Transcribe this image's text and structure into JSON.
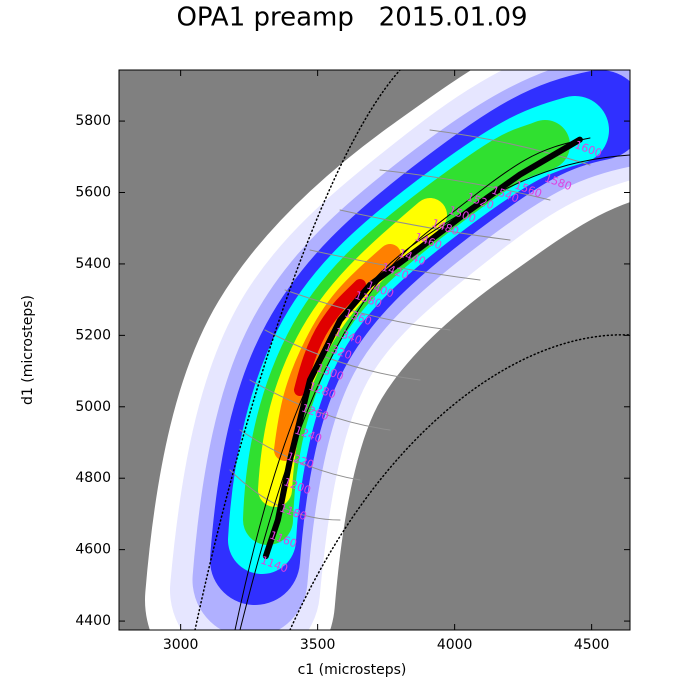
{
  "chart_data": {
    "type": "contour",
    "title": "OPA1 preamp   2015.01.09",
    "xlabel": "c1 (microsteps)",
    "ylabel": "d1 (microsteps)",
    "xlim": [
      2775,
      4640
    ],
    "xticks": [
      3000,
      3500,
      4000,
      4500
    ],
    "ylim": [
      4375,
      5943
    ],
    "yticks": [
      4400,
      4600,
      4800,
      5000,
      5200,
      5400,
      5600,
      5800
    ],
    "tune_curve": {
      "color": "#000000",
      "x": [
        3311,
        3355,
        3399,
        3472,
        3582,
        3691,
        3874,
        4056,
        4238,
        4457
      ],
      "y": [
        4582,
        4683,
        4851,
        5075,
        5243,
        5341,
        5445,
        5551,
        5650,
        5748
      ]
    },
    "contour_label_color": "#e040e0",
    "contour_labels": [
      {
        "value": 1140,
        "x": 3341,
        "y": 4557
      },
      {
        "value": 1160,
        "x": 3374,
        "y": 4627
      },
      {
        "value": 1180,
        "x": 3410,
        "y": 4703
      },
      {
        "value": 1200,
        "x": 3425,
        "y": 4776
      },
      {
        "value": 1220,
        "x": 3436,
        "y": 4848
      },
      {
        "value": 1240,
        "x": 3465,
        "y": 4921
      },
      {
        "value": 1260,
        "x": 3490,
        "y": 4983
      },
      {
        "value": 1280,
        "x": 3516,
        "y": 5044
      },
      {
        "value": 1300,
        "x": 3545,
        "y": 5095
      },
      {
        "value": 1320,
        "x": 3574,
        "y": 5154
      },
      {
        "value": 1340,
        "x": 3611,
        "y": 5196
      },
      {
        "value": 1360,
        "x": 3647,
        "y": 5249
      },
      {
        "value": 1380,
        "x": 3684,
        "y": 5299
      },
      {
        "value": 1400,
        "x": 3728,
        "y": 5327
      },
      {
        "value": 1420,
        "x": 3782,
        "y": 5378
      },
      {
        "value": 1440,
        "x": 3844,
        "y": 5417
      },
      {
        "value": 1460,
        "x": 3903,
        "y": 5462
      },
      {
        "value": 1480,
        "x": 3965,
        "y": 5501
      },
      {
        "value": 1500,
        "x": 4027,
        "y": 5537
      },
      {
        "value": 1520,
        "x": 4093,
        "y": 5574
      },
      {
        "value": 1540,
        "x": 4184,
        "y": 5593
      },
      {
        "value": 1560,
        "x": 4268,
        "y": 5607
      },
      {
        "value": 1580,
        "x": 4377,
        "y": 5627
      },
      {
        "value": 1600,
        "x": 4487,
        "y": 5720
      }
    ]
  }
}
